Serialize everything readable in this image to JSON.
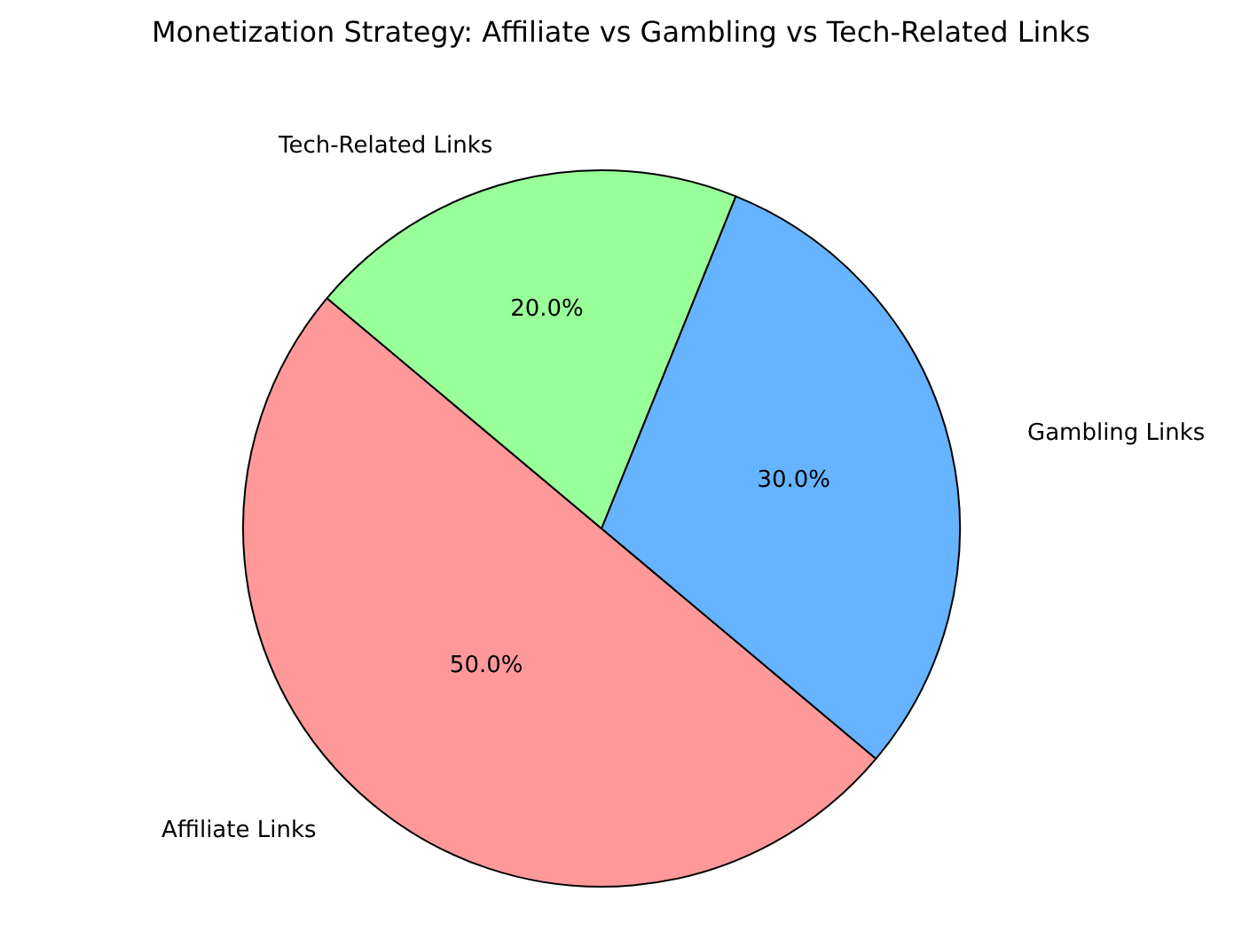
{
  "chart_data": {
    "type": "pie",
    "title": "Monetization Strategy: Affiliate vs Gambling vs Tech-Related Links",
    "categories": [
      "Affiliate Links",
      "Gambling Links",
      "Tech-Related Links"
    ],
    "values": [
      50,
      30,
      20
    ],
    "value_labels": [
      "50.0%",
      "30.0%",
      "20.0%"
    ],
    "colors": [
      "#ff9999",
      "#66b3ff",
      "#99ff99"
    ],
    "legend": false
  }
}
